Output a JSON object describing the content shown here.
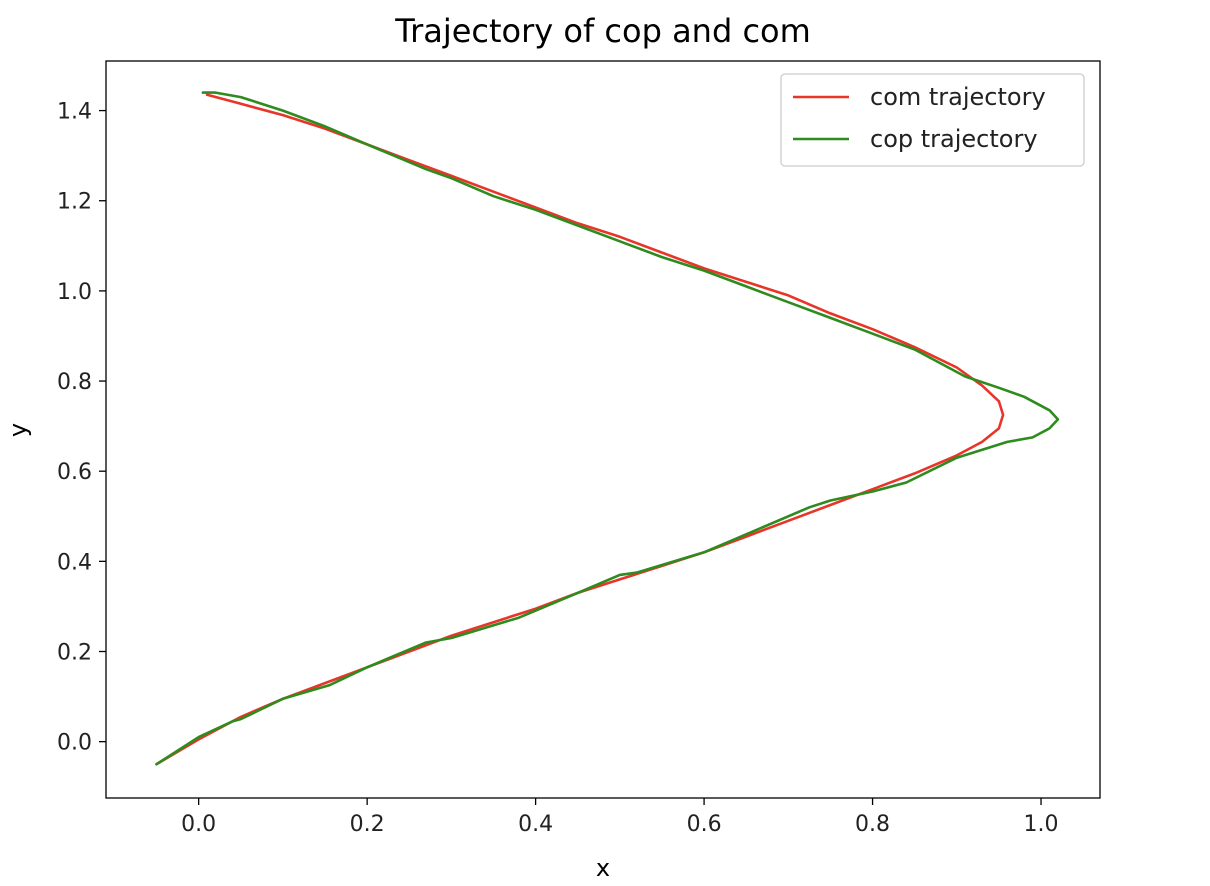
{
  "chart_data": {
    "type": "line",
    "title": "Trajectory of cop and com",
    "xlabel": "x",
    "ylabel": "y",
    "xlim": [
      -0.11,
      1.07
    ],
    "ylim": [
      -0.125,
      1.51
    ],
    "xticks": [
      0.0,
      0.2,
      0.4,
      0.6,
      0.8,
      1.0
    ],
    "xtick_labels": [
      "0.0",
      "0.2",
      "0.4",
      "0.6",
      "0.8",
      "1.0"
    ],
    "yticks": [
      0.0,
      0.2,
      0.4,
      0.6,
      0.8,
      1.0,
      1.2,
      1.4
    ],
    "ytick_labels": [
      "0.0",
      "0.2",
      "0.4",
      "0.6",
      "0.8",
      "1.0",
      "1.2",
      "1.4"
    ],
    "grid": false,
    "legend_position": "top-right",
    "series": [
      {
        "name": "com trajectory",
        "color": "#e8352a",
        "x": [
          -0.05,
          0.0,
          0.05,
          0.1,
          0.15,
          0.2,
          0.25,
          0.3,
          0.35,
          0.4,
          0.45,
          0.5,
          0.55,
          0.6,
          0.65,
          0.7,
          0.75,
          0.8,
          0.85,
          0.9,
          0.93,
          0.95,
          0.955,
          0.95,
          0.93,
          0.9,
          0.85,
          0.8,
          0.75,
          0.7,
          0.65,
          0.6,
          0.55,
          0.5,
          0.45,
          0.4,
          0.35,
          0.3,
          0.25,
          0.2,
          0.15,
          0.1,
          0.05,
          0.01
        ],
        "y": [
          -0.05,
          0.005,
          0.055,
          0.095,
          0.13,
          0.165,
          0.2,
          0.235,
          0.265,
          0.295,
          0.33,
          0.36,
          0.39,
          0.42,
          0.455,
          0.49,
          0.525,
          0.56,
          0.595,
          0.635,
          0.665,
          0.695,
          0.725,
          0.755,
          0.79,
          0.83,
          0.875,
          0.915,
          0.95,
          0.99,
          1.02,
          1.05,
          1.085,
          1.12,
          1.15,
          1.185,
          1.22,
          1.255,
          1.29,
          1.325,
          1.36,
          1.39,
          1.415,
          1.435
        ]
      },
      {
        "name": "cop trajectory",
        "color": "#2e8b1e",
        "x": [
          -0.05,
          0.0,
          0.04,
          0.05,
          0.1,
          0.155,
          0.2,
          0.27,
          0.3,
          0.38,
          0.45,
          0.5,
          0.52,
          0.6,
          0.65,
          0.725,
          0.75,
          0.8,
          0.84,
          0.9,
          0.96,
          0.99,
          1.01,
          1.02,
          1.01,
          0.98,
          0.95,
          0.91,
          0.85,
          0.8,
          0.75,
          0.7,
          0.65,
          0.6,
          0.55,
          0.5,
          0.45,
          0.4,
          0.35,
          0.3,
          0.27,
          0.2,
          0.15,
          0.1,
          0.05,
          0.02,
          0.005
        ],
        "y": [
          -0.05,
          0.01,
          0.045,
          0.05,
          0.095,
          0.125,
          0.165,
          0.22,
          0.23,
          0.275,
          0.33,
          0.37,
          0.375,
          0.42,
          0.46,
          0.52,
          0.535,
          0.555,
          0.575,
          0.63,
          0.665,
          0.675,
          0.695,
          0.715,
          0.735,
          0.765,
          0.785,
          0.81,
          0.87,
          0.905,
          0.94,
          0.975,
          1.01,
          1.045,
          1.075,
          1.11,
          1.145,
          1.18,
          1.21,
          1.25,
          1.27,
          1.325,
          1.365,
          1.4,
          1.43,
          1.44,
          1.44
        ]
      }
    ]
  }
}
